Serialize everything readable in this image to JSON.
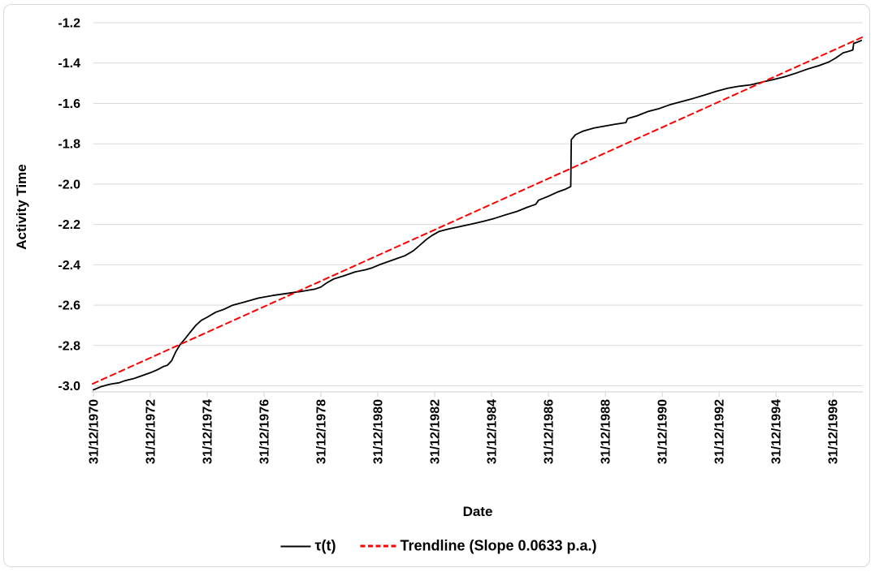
{
  "colors": {
    "background": "#ffffff",
    "frame_border": "#d9d9d9",
    "gridline": "#d9d9d9",
    "axis_line": "#d9d9d9",
    "text": "#000000",
    "series_tau": "#000000",
    "trendline": "#ff0000"
  },
  "chart_data": {
    "type": "line",
    "title": "",
    "xlabel": "Date",
    "ylabel": "Activity Time",
    "grid": "horizontal",
    "legend_position": "bottom",
    "xlim": [
      1971,
      1998.05
    ],
    "ylim": [
      -3.03,
      -1.2
    ],
    "y_ticks": [
      -1.2,
      -1.4,
      -1.6,
      -1.8,
      -2.0,
      -2.2,
      -2.4,
      -2.6,
      -2.8,
      -3.0
    ],
    "y_tick_labels": [
      "-1.2",
      "-1.4",
      "-1.6",
      "-1.8",
      "-2.0",
      "-2.2",
      "-2.4",
      "-2.6",
      "-2.8",
      "-3.0"
    ],
    "x_ticks": [
      1971,
      1973,
      1975,
      1977,
      1979,
      1981,
      1983,
      1985,
      1987,
      1989,
      1991,
      1993,
      1995,
      1997
    ],
    "x_tick_labels": [
      "31/12/1970",
      "31/12/1972",
      "31/12/1974",
      "31/12/1976",
      "31/12/1978",
      "31/12/1980",
      "31/12/1982",
      "31/12/1984",
      "31/12/1986",
      "31/12/1988",
      "31/12/1990",
      "31/12/1992",
      "31/12/1994",
      "31/12/1996"
    ],
    "series": [
      {
        "name": "τ(t)",
        "color": "#000000",
        "dash": null,
        "width": 1.8,
        "points": [
          [
            1971.0,
            -3.02
          ],
          [
            1971.25,
            -3.005
          ],
          [
            1971.5,
            -2.995
          ],
          [
            1971.65,
            -2.99
          ],
          [
            1971.9,
            -2.985
          ],
          [
            1972.1,
            -2.975
          ],
          [
            1972.4,
            -2.965
          ],
          [
            1972.7,
            -2.95
          ],
          [
            1973.0,
            -2.935
          ],
          [
            1973.25,
            -2.92
          ],
          [
            1973.45,
            -2.905
          ],
          [
            1973.6,
            -2.898
          ],
          [
            1973.75,
            -2.875
          ],
          [
            1973.9,
            -2.83
          ],
          [
            1974.05,
            -2.795
          ],
          [
            1974.2,
            -2.77
          ],
          [
            1974.4,
            -2.735
          ],
          [
            1974.6,
            -2.7
          ],
          [
            1974.8,
            -2.675
          ],
          [
            1975.0,
            -2.66
          ],
          [
            1975.3,
            -2.635
          ],
          [
            1975.6,
            -2.62
          ],
          [
            1975.9,
            -2.6
          ],
          [
            1976.3,
            -2.585
          ],
          [
            1976.8,
            -2.565
          ],
          [
            1977.3,
            -2.552
          ],
          [
            1977.8,
            -2.542
          ],
          [
            1978.3,
            -2.532
          ],
          [
            1978.8,
            -2.52
          ],
          [
            1979.0,
            -2.51
          ],
          [
            1979.2,
            -2.49
          ],
          [
            1979.45,
            -2.47
          ],
          [
            1979.8,
            -2.455
          ],
          [
            1980.2,
            -2.435
          ],
          [
            1980.55,
            -2.425
          ],
          [
            1980.8,
            -2.415
          ],
          [
            1981.05,
            -2.4
          ],
          [
            1981.35,
            -2.385
          ],
          [
            1981.65,
            -2.37
          ],
          [
            1981.95,
            -2.355
          ],
          [
            1982.25,
            -2.33
          ],
          [
            1982.5,
            -2.3
          ],
          [
            1982.7,
            -2.275
          ],
          [
            1982.9,
            -2.255
          ],
          [
            1983.15,
            -2.235
          ],
          [
            1983.5,
            -2.222
          ],
          [
            1983.9,
            -2.21
          ],
          [
            1984.3,
            -2.198
          ],
          [
            1984.7,
            -2.185
          ],
          [
            1985.1,
            -2.17
          ],
          [
            1985.5,
            -2.152
          ],
          [
            1985.9,
            -2.135
          ],
          [
            1986.25,
            -2.115
          ],
          [
            1986.55,
            -2.1
          ],
          [
            1986.65,
            -2.08
          ],
          [
            1987.0,
            -2.06
          ],
          [
            1987.3,
            -2.04
          ],
          [
            1987.6,
            -2.025
          ],
          [
            1987.78,
            -2.012
          ],
          [
            1987.8,
            -1.78
          ],
          [
            1987.95,
            -1.755
          ],
          [
            1988.2,
            -1.738
          ],
          [
            1988.6,
            -1.722
          ],
          [
            1989.0,
            -1.712
          ],
          [
            1989.4,
            -1.702
          ],
          [
            1989.72,
            -1.695
          ],
          [
            1989.78,
            -1.675
          ],
          [
            1990.1,
            -1.662
          ],
          [
            1990.5,
            -1.64
          ],
          [
            1990.9,
            -1.625
          ],
          [
            1991.3,
            -1.605
          ],
          [
            1991.7,
            -1.59
          ],
          [
            1992.1,
            -1.575
          ],
          [
            1992.5,
            -1.558
          ],
          [
            1992.9,
            -1.54
          ],
          [
            1993.3,
            -1.525
          ],
          [
            1993.7,
            -1.515
          ],
          [
            1994.1,
            -1.508
          ],
          [
            1994.5,
            -1.495
          ],
          [
            1994.9,
            -1.482
          ],
          [
            1995.3,
            -1.468
          ],
          [
            1995.7,
            -1.45
          ],
          [
            1996.1,
            -1.43
          ],
          [
            1996.5,
            -1.413
          ],
          [
            1996.85,
            -1.395
          ],
          [
            1997.1,
            -1.375
          ],
          [
            1997.35,
            -1.35
          ],
          [
            1997.55,
            -1.342
          ],
          [
            1997.7,
            -1.335
          ],
          [
            1997.73,
            -1.302
          ],
          [
            1997.85,
            -1.297
          ],
          [
            1998.0,
            -1.288
          ]
        ]
      },
      {
        "name": "Trendline (Slope 0.0633 p.a.)",
        "color": "#FF0000",
        "dash": [
          7,
          5
        ],
        "width": 2,
        "points": [
          [
            1970.97,
            -2.99
          ],
          [
            1998.03,
            -1.272
          ]
        ]
      }
    ]
  },
  "legend": {
    "tau_label": "τ(t)",
    "trendline_label": "Trendline (Slope 0.0633 p.a.)"
  }
}
